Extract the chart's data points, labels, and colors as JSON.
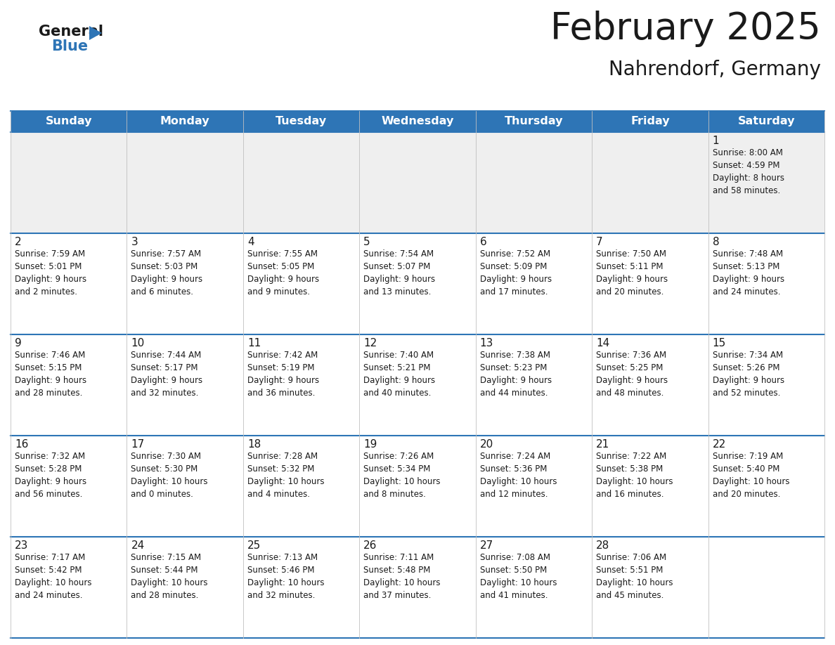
{
  "title": "February 2025",
  "subtitle": "Nahrendorf, Germany",
  "header_color": "#2E75B6",
  "header_text_color": "#FFFFFF",
  "bg_color": "#FFFFFF",
  "row0_bg_color": "#EFEFEF",
  "row_bg_color": "#FFFFFF",
  "day_headers": [
    "Sunday",
    "Monday",
    "Tuesday",
    "Wednesday",
    "Thursday",
    "Friday",
    "Saturday"
  ],
  "border_color": "#2E75B6",
  "cell_line_color": "#AAAAAA",
  "days": [
    {
      "day": 1,
      "col": 6,
      "row": 0,
      "sunrise": "8:00 AM",
      "sunset": "4:59 PM",
      "daylight_hours": 8,
      "daylight_minutes": 58
    },
    {
      "day": 2,
      "col": 0,
      "row": 1,
      "sunrise": "7:59 AM",
      "sunset": "5:01 PM",
      "daylight_hours": 9,
      "daylight_minutes": 2
    },
    {
      "day": 3,
      "col": 1,
      "row": 1,
      "sunrise": "7:57 AM",
      "sunset": "5:03 PM",
      "daylight_hours": 9,
      "daylight_minutes": 6
    },
    {
      "day": 4,
      "col": 2,
      "row": 1,
      "sunrise": "7:55 AM",
      "sunset": "5:05 PM",
      "daylight_hours": 9,
      "daylight_minutes": 9
    },
    {
      "day": 5,
      "col": 3,
      "row": 1,
      "sunrise": "7:54 AM",
      "sunset": "5:07 PM",
      "daylight_hours": 9,
      "daylight_minutes": 13
    },
    {
      "day": 6,
      "col": 4,
      "row": 1,
      "sunrise": "7:52 AM",
      "sunset": "5:09 PM",
      "daylight_hours": 9,
      "daylight_minutes": 17
    },
    {
      "day": 7,
      "col": 5,
      "row": 1,
      "sunrise": "7:50 AM",
      "sunset": "5:11 PM",
      "daylight_hours": 9,
      "daylight_minutes": 20
    },
    {
      "day": 8,
      "col": 6,
      "row": 1,
      "sunrise": "7:48 AM",
      "sunset": "5:13 PM",
      "daylight_hours": 9,
      "daylight_minutes": 24
    },
    {
      "day": 9,
      "col": 0,
      "row": 2,
      "sunrise": "7:46 AM",
      "sunset": "5:15 PM",
      "daylight_hours": 9,
      "daylight_minutes": 28
    },
    {
      "day": 10,
      "col": 1,
      "row": 2,
      "sunrise": "7:44 AM",
      "sunset": "5:17 PM",
      "daylight_hours": 9,
      "daylight_minutes": 32
    },
    {
      "day": 11,
      "col": 2,
      "row": 2,
      "sunrise": "7:42 AM",
      "sunset": "5:19 PM",
      "daylight_hours": 9,
      "daylight_minutes": 36
    },
    {
      "day": 12,
      "col": 3,
      "row": 2,
      "sunrise": "7:40 AM",
      "sunset": "5:21 PM",
      "daylight_hours": 9,
      "daylight_minutes": 40
    },
    {
      "day": 13,
      "col": 4,
      "row": 2,
      "sunrise": "7:38 AM",
      "sunset": "5:23 PM",
      "daylight_hours": 9,
      "daylight_minutes": 44
    },
    {
      "day": 14,
      "col": 5,
      "row": 2,
      "sunrise": "7:36 AM",
      "sunset": "5:25 PM",
      "daylight_hours": 9,
      "daylight_minutes": 48
    },
    {
      "day": 15,
      "col": 6,
      "row": 2,
      "sunrise": "7:34 AM",
      "sunset": "5:26 PM",
      "daylight_hours": 9,
      "daylight_minutes": 52
    },
    {
      "day": 16,
      "col": 0,
      "row": 3,
      "sunrise": "7:32 AM",
      "sunset": "5:28 PM",
      "daylight_hours": 9,
      "daylight_minutes": 56
    },
    {
      "day": 17,
      "col": 1,
      "row": 3,
      "sunrise": "7:30 AM",
      "sunset": "5:30 PM",
      "daylight_hours": 10,
      "daylight_minutes": 0
    },
    {
      "day": 18,
      "col": 2,
      "row": 3,
      "sunrise": "7:28 AM",
      "sunset": "5:32 PM",
      "daylight_hours": 10,
      "daylight_minutes": 4
    },
    {
      "day": 19,
      "col": 3,
      "row": 3,
      "sunrise": "7:26 AM",
      "sunset": "5:34 PM",
      "daylight_hours": 10,
      "daylight_minutes": 8
    },
    {
      "day": 20,
      "col": 4,
      "row": 3,
      "sunrise": "7:24 AM",
      "sunset": "5:36 PM",
      "daylight_hours": 10,
      "daylight_minutes": 12
    },
    {
      "day": 21,
      "col": 5,
      "row": 3,
      "sunrise": "7:22 AM",
      "sunset": "5:38 PM",
      "daylight_hours": 10,
      "daylight_minutes": 16
    },
    {
      "day": 22,
      "col": 6,
      "row": 3,
      "sunrise": "7:19 AM",
      "sunset": "5:40 PM",
      "daylight_hours": 10,
      "daylight_minutes": 20
    },
    {
      "day": 23,
      "col": 0,
      "row": 4,
      "sunrise": "7:17 AM",
      "sunset": "5:42 PM",
      "daylight_hours": 10,
      "daylight_minutes": 24
    },
    {
      "day": 24,
      "col": 1,
      "row": 4,
      "sunrise": "7:15 AM",
      "sunset": "5:44 PM",
      "daylight_hours": 10,
      "daylight_minutes": 28
    },
    {
      "day": 25,
      "col": 2,
      "row": 4,
      "sunrise": "7:13 AM",
      "sunset": "5:46 PM",
      "daylight_hours": 10,
      "daylight_minutes": 32
    },
    {
      "day": 26,
      "col": 3,
      "row": 4,
      "sunrise": "7:11 AM",
      "sunset": "5:48 PM",
      "daylight_hours": 10,
      "daylight_minutes": 37
    },
    {
      "day": 27,
      "col": 4,
      "row": 4,
      "sunrise": "7:08 AM",
      "sunset": "5:50 PM",
      "daylight_hours": 10,
      "daylight_minutes": 41
    },
    {
      "day": 28,
      "col": 5,
      "row": 4,
      "sunrise": "7:06 AM",
      "sunset": "5:51 PM",
      "daylight_hours": 10,
      "daylight_minutes": 45
    }
  ],
  "num_rows": 5,
  "num_cols": 7
}
